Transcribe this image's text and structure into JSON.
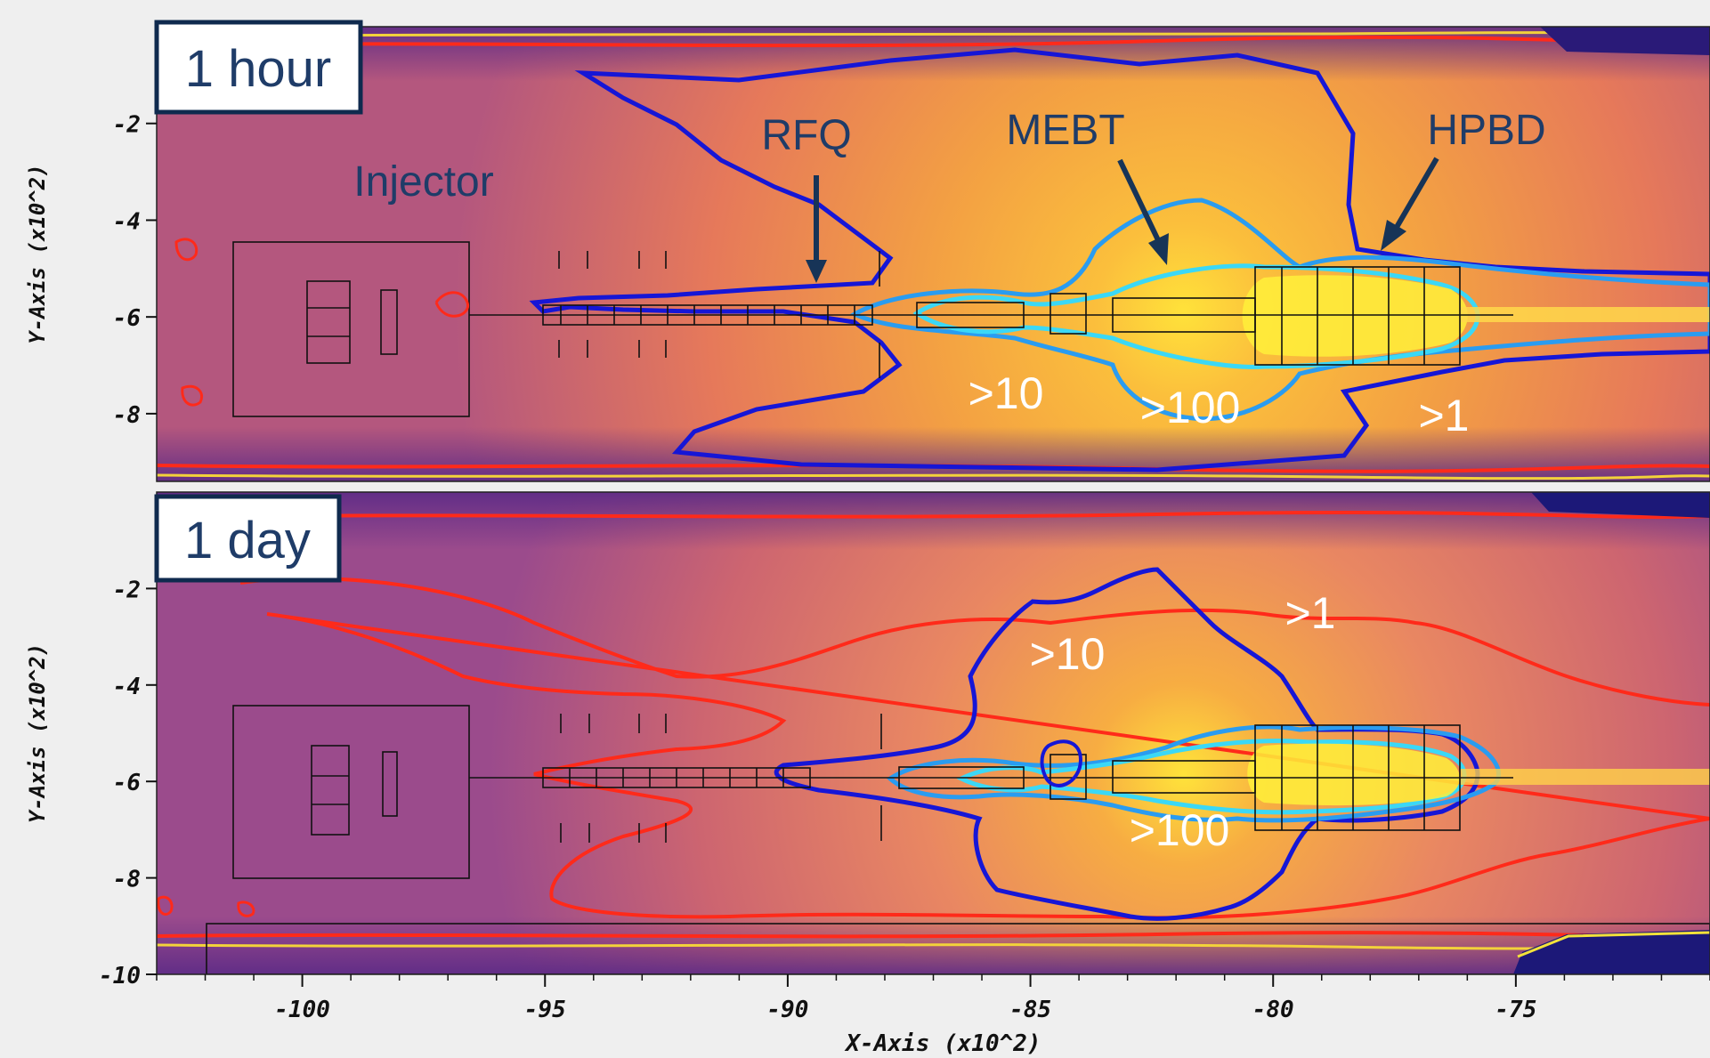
{
  "colors": {
    "background": "#efefef",
    "field_low": "#9c4d8e",
    "field_mid": "#e2735e",
    "field_high": "#f5a443",
    "hot": "#fde725",
    "contour_red": "#ff2020",
    "contour_blue": "#1414d8",
    "contour_lightblue": "#2a9cf0",
    "contour_cyan": "#33d6f5",
    "label_box_border": "#0f2a4e",
    "label_text_dark": "#1f3c68",
    "label_text_light": "#ffffff"
  },
  "chart_data": [
    {
      "type": "heatmap",
      "panel_label": "1 hour",
      "xlabel": "X-Axis (x10^2)",
      "ylabel": "Y-Axis (x10^2)",
      "xlim": [
        -103,
        -71
      ],
      "ylim": [
        -9.4,
        0
      ],
      "yticks": [
        -2,
        -4,
        -6,
        -8
      ],
      "yticklabels": [
        "-2",
        "-4",
        "-6",
        "-8"
      ],
      "components": [
        {
          "name": "Injector",
          "x": -97.3,
          "y": -3.7
        },
        {
          "name": "RFQ",
          "x": -88.3,
          "y": -2.6
        },
        {
          "name": "MEBT",
          "x": -82.5,
          "y": -2.0
        },
        {
          "name": "HPBD",
          "x": -75.0,
          "y": -2.0
        }
      ],
      "contour_labels": [
        {
          "text": ">10",
          "x": -84.8,
          "y": -7.3
        },
        {
          "text": ">100",
          "x": -81.5,
          "y": -7.5
        },
        {
          "text": ">1",
          "x": -76.3,
          "y": -7.9
        }
      ]
    },
    {
      "type": "heatmap",
      "panel_label": "1 day",
      "xlabel": "X-Axis (x10^2)",
      "ylabel": "Y-Axis (x10^2)",
      "xlim": [
        -103,
        -71
      ],
      "ylim": [
        -10,
        0
      ],
      "xticks": [
        -100,
        -95,
        -90,
        -85,
        -80,
        -75
      ],
      "xticklabels": [
        "-100",
        "-95",
        "-90",
        "-85",
        "-80",
        "-75"
      ],
      "yticks": [
        -2,
        -4,
        -6,
        -8,
        -10
      ],
      "yticklabels": [
        "-2",
        "-4",
        "-6",
        "-8",
        "-10"
      ],
      "contour_labels": [
        {
          "text": ">10",
          "x": -83.6,
          "y": -3.5
        },
        {
          "text": ">1",
          "x": -78.1,
          "y": -2.7
        },
        {
          "text": ">100",
          "x": -81.7,
          "y": -7.0
        }
      ]
    }
  ]
}
